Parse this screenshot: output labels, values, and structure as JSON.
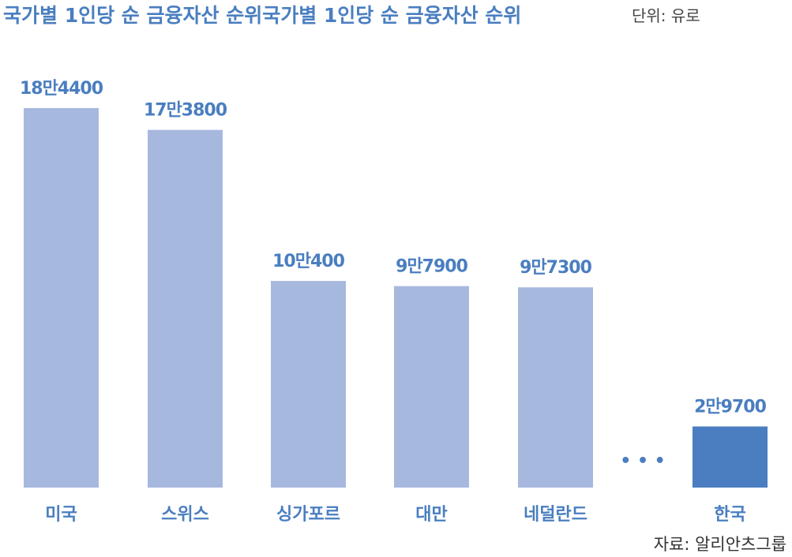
{
  "chart_data": {
    "type": "bar",
    "title": "국가별 1인당 순 금융자산 순위국가별 1인당 순 금융자산 순위",
    "unit_label": "단위: 유로",
    "source": "자료: 알리안츠그룹",
    "categories": [
      "미국",
      "스위스",
      "싱가포르",
      "대만",
      "네덜란드",
      "한국"
    ],
    "values": [
      184400,
      173800,
      100400,
      97900,
      97300,
      29700
    ],
    "value_labels": [
      "18만4400",
      "17만3800",
      "10만400",
      "9만7900",
      "9만7300",
      "2만9700"
    ],
    "gap_marker": "• • •",
    "gap_after_index": 4,
    "highlight_index": 5,
    "ylim": [
      0,
      184400
    ],
    "colors": {
      "bar": "#a7b8df",
      "highlight": "#4a7ec0",
      "text": "#4a7ec0"
    }
  }
}
